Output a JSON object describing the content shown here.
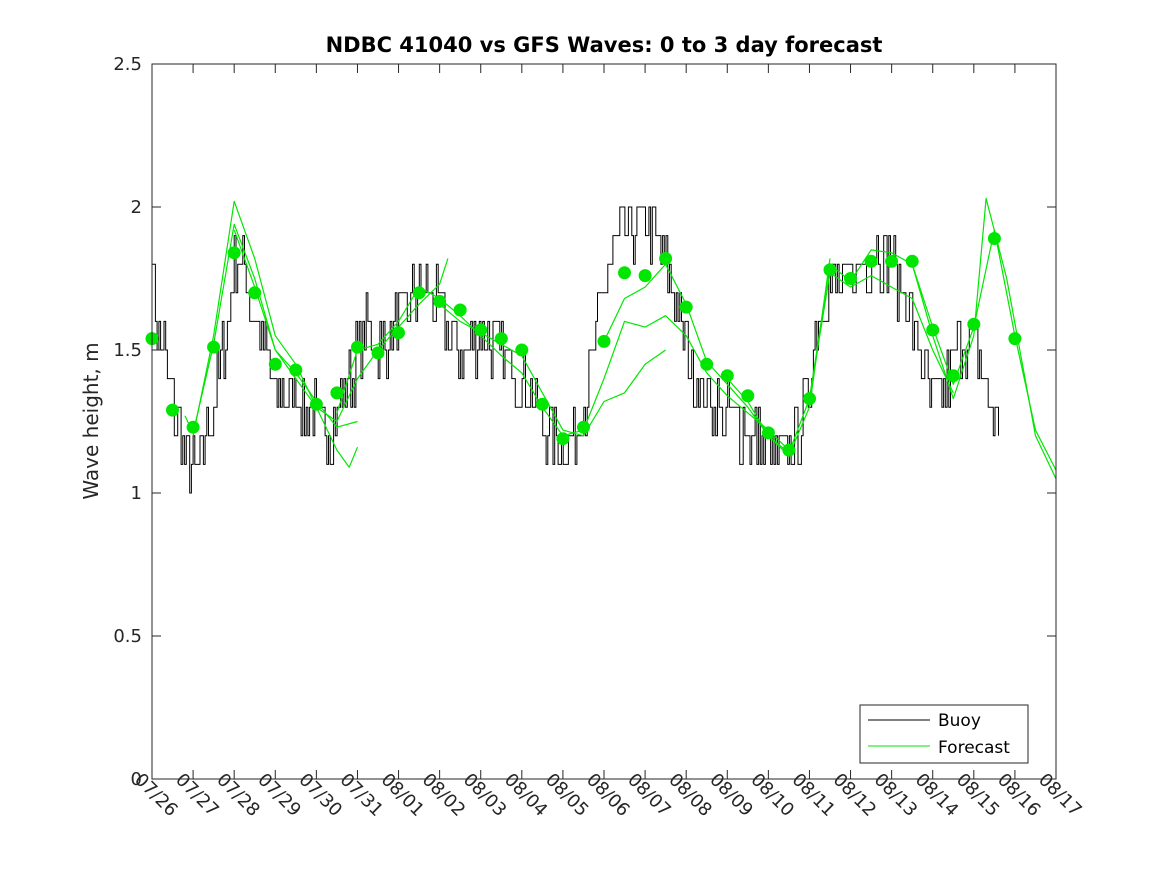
{
  "chart_data": {
    "type": "line",
    "title": "NDBC 41040 vs GFS Waves: 0 to 3 day forecast",
    "xlabel": "",
    "ylabel": "Wave height, m",
    "xlim": [
      0,
      22
    ],
    "ylim": [
      0,
      2.5
    ],
    "x_tick_labels": [
      "07/26",
      "07/27",
      "07/28",
      "07/29",
      "07/30",
      "07/31",
      "08/01",
      "08/02",
      "08/03",
      "08/04",
      "08/05",
      "08/06",
      "08/07",
      "08/08",
      "08/09",
      "08/10",
      "08/11",
      "08/12",
      "08/13",
      "08/14",
      "08/15",
      "08/16",
      "08/17"
    ],
    "y_ticks": [
      0,
      0.5,
      1,
      1.5,
      2,
      2.5
    ],
    "y_tick_labels": [
      "0",
      "0.5",
      "1",
      "1.5",
      "2",
      "2.5"
    ],
    "legend": {
      "position": "bottom-right",
      "entries": [
        "Buoy",
        "Forecast"
      ]
    },
    "colors": {
      "buoy": "#000000",
      "forecast": "#00e600",
      "axis": "#262626"
    },
    "series": [
      {
        "name": "Buoy",
        "x_start": 0,
        "x_step": 0.0417,
        "seed": 7,
        "anchors": [
          [
            0.0,
            1.88
          ],
          [
            0.1,
            1.55
          ],
          [
            0.3,
            1.5
          ],
          [
            0.5,
            1.3
          ],
          [
            0.8,
            1.15
          ],
          [
            1.0,
            1.08
          ],
          [
            1.2,
            1.15
          ],
          [
            1.5,
            1.3
          ],
          [
            1.8,
            1.55
          ],
          [
            2.0,
            1.8
          ],
          [
            2.2,
            1.8
          ],
          [
            2.5,
            1.6
          ],
          [
            2.8,
            1.45
          ],
          [
            3.0,
            1.35
          ],
          [
            3.5,
            1.35
          ],
          [
            4.0,
            1.25
          ],
          [
            4.3,
            1.22
          ],
          [
            4.8,
            1.4
          ],
          [
            5.2,
            1.55
          ],
          [
            5.6,
            1.5
          ],
          [
            6.0,
            1.6
          ],
          [
            6.5,
            1.7
          ],
          [
            6.8,
            1.7
          ],
          [
            7.2,
            1.55
          ],
          [
            7.6,
            1.5
          ],
          [
            8.0,
            1.55
          ],
          [
            8.4,
            1.5
          ],
          [
            8.8,
            1.45
          ],
          [
            9.2,
            1.35
          ],
          [
            9.6,
            1.22
          ],
          [
            10.0,
            1.15
          ],
          [
            10.3,
            1.2
          ],
          [
            10.5,
            1.3
          ],
          [
            10.8,
            1.5
          ],
          [
            11.0,
            1.75
          ],
          [
            11.4,
            1.9
          ],
          [
            11.8,
            1.95
          ],
          [
            12.2,
            1.9
          ],
          [
            12.6,
            1.75
          ],
          [
            13.0,
            1.5
          ],
          [
            13.4,
            1.35
          ],
          [
            13.8,
            1.3
          ],
          [
            14.2,
            1.25
          ],
          [
            14.6,
            1.2
          ],
          [
            15.0,
            1.15
          ],
          [
            15.3,
            1.12
          ],
          [
            15.6,
            1.15
          ],
          [
            15.9,
            1.3
          ],
          [
            16.2,
            1.6
          ],
          [
            16.5,
            1.75
          ],
          [
            16.8,
            1.7
          ],
          [
            17.2,
            1.8
          ],
          [
            17.6,
            1.85
          ],
          [
            18.0,
            1.8
          ],
          [
            18.4,
            1.65
          ],
          [
            18.8,
            1.4
          ],
          [
            19.0,
            1.3
          ],
          [
            19.3,
            1.35
          ],
          [
            19.6,
            1.5
          ],
          [
            20.0,
            1.55
          ],
          [
            20.2,
            1.45
          ],
          [
            20.4,
            1.3
          ],
          [
            20.6,
            1.2
          ]
        ]
      },
      {
        "name": "Forecast",
        "daily_markers": [
          [
            0.0,
            1.54
          ],
          [
            0.5,
            1.29
          ],
          [
            1.0,
            1.23
          ],
          [
            1.5,
            1.51
          ],
          [
            2.0,
            1.84
          ],
          [
            2.5,
            1.7
          ],
          [
            3.0,
            1.45
          ],
          [
            3.5,
            1.43
          ],
          [
            4.0,
            1.31
          ],
          [
            4.5,
            1.35
          ],
          [
            5.0,
            1.51
          ],
          [
            5.5,
            1.49
          ],
          [
            6.0,
            1.56
          ],
          [
            6.5,
            1.7
          ],
          [
            7.0,
            1.67
          ],
          [
            7.5,
            1.64
          ],
          [
            8.0,
            1.57
          ],
          [
            8.5,
            1.54
          ],
          [
            9.0,
            1.5
          ],
          [
            9.5,
            1.31
          ],
          [
            10.0,
            1.19
          ],
          [
            10.5,
            1.23
          ],
          [
            11.0,
            1.53
          ],
          [
            11.5,
            1.77
          ],
          [
            12.0,
            1.76
          ],
          [
            12.5,
            1.82
          ],
          [
            13.0,
            1.65
          ],
          [
            13.5,
            1.45
          ],
          [
            14.0,
            1.41
          ],
          [
            14.5,
            1.34
          ],
          [
            15.0,
            1.21
          ],
          [
            15.5,
            1.15
          ],
          [
            16.0,
            1.33
          ],
          [
            16.5,
            1.78
          ],
          [
            17.0,
            1.75
          ],
          [
            17.5,
            1.81
          ],
          [
            18.0,
            1.81
          ],
          [
            18.5,
            1.81
          ],
          [
            19.0,
            1.57
          ],
          [
            19.5,
            1.41
          ],
          [
            20.0,
            1.59
          ],
          [
            20.5,
            1.89
          ],
          [
            21.0,
            1.54
          ]
        ],
        "runs": [
          [
            [
              0.8,
              1.27
            ],
            [
              1.0,
              1.21
            ],
            [
              1.5,
              1.52
            ],
            [
              2.0,
              1.94
            ],
            [
              2.5,
              1.75
            ],
            [
              3.0,
              1.5
            ],
            [
              3.5,
              1.42
            ],
            [
              4.0,
              1.32
            ],
            [
              4.5,
              1.23
            ],
            [
              5.0,
              1.25
            ]
          ],
          [
            [
              1.0,
              1.2
            ],
            [
              1.5,
              1.55
            ],
            [
              2.0,
              2.02
            ],
            [
              2.5,
              1.82
            ],
            [
              3.0,
              1.55
            ],
            [
              3.5,
              1.45
            ],
            [
              4.0,
              1.3
            ],
            [
              4.5,
              1.15
            ],
            [
              4.8,
              1.09
            ],
            [
              5.0,
              1.16
            ]
          ],
          [
            [
              2.0,
              1.92
            ],
            [
              2.5,
              1.72
            ],
            [
              3.0,
              1.5
            ],
            [
              3.5,
              1.4
            ],
            [
              4.0,
              1.3
            ],
            [
              4.5,
              1.25
            ],
            [
              5.0,
              1.4
            ],
            [
              5.5,
              1.5
            ],
            [
              6.0,
              1.58
            ],
            [
              6.5,
              1.66
            ],
            [
              7.0,
              1.73
            ],
            [
              7.2,
              1.82
            ]
          ],
          [
            [
              4.5,
              1.28
            ],
            [
              5.0,
              1.5
            ],
            [
              5.5,
              1.52
            ],
            [
              6.0,
              1.6
            ],
            [
              6.5,
              1.72
            ],
            [
              7.0,
              1.68
            ],
            [
              7.5,
              1.62
            ],
            [
              8.0,
              1.55
            ],
            [
              8.5,
              1.48
            ],
            [
              9.0,
              1.42
            ],
            [
              9.5,
              1.3
            ],
            [
              10.0,
              1.2
            ]
          ],
          [
            [
              7.0,
              1.66
            ],
            [
              7.5,
              1.6
            ],
            [
              8.0,
              1.56
            ],
            [
              8.5,
              1.52
            ],
            [
              9.0,
              1.48
            ],
            [
              9.5,
              1.35
            ],
            [
              10.0,
              1.22
            ],
            [
              10.5,
              1.2
            ],
            [
              11.0,
              1.32
            ],
            [
              11.5,
              1.35
            ],
            [
              12.0,
              1.45
            ],
            [
              12.5,
              1.5
            ]
          ],
          [
            [
              10.0,
              1.2
            ],
            [
              10.5,
              1.22
            ],
            [
              11.0,
              1.4
            ],
            [
              11.5,
              1.6
            ],
            [
              12.0,
              1.58
            ],
            [
              12.5,
              1.62
            ],
            [
              13.0,
              1.55
            ],
            [
              13.5,
              1.42
            ],
            [
              14.0,
              1.34
            ],
            [
              14.5,
              1.28
            ],
            [
              15.0,
              1.22
            ],
            [
              15.5,
              1.15
            ]
          ],
          [
            [
              11.0,
              1.53
            ],
            [
              11.5,
              1.68
            ],
            [
              12.0,
              1.72
            ],
            [
              12.5,
              1.8
            ],
            [
              13.0,
              1.66
            ],
            [
              13.5,
              1.46
            ],
            [
              14.0,
              1.38
            ],
            [
              14.5,
              1.3
            ],
            [
              15.0,
              1.2
            ],
            [
              15.5,
              1.13
            ],
            [
              16.0,
              1.3
            ],
            [
              16.5,
              1.82
            ]
          ],
          [
            [
              14.0,
              1.4
            ],
            [
              14.5,
              1.32
            ],
            [
              15.0,
              1.2
            ],
            [
              15.5,
              1.14
            ],
            [
              16.0,
              1.33
            ],
            [
              16.5,
              1.77
            ],
            [
              17.0,
              1.72
            ],
            [
              17.5,
              1.76
            ],
            [
              18.0,
              1.72
            ],
            [
              18.5,
              1.68
            ],
            [
              19.0,
              1.5
            ],
            [
              19.5,
              1.35
            ]
          ],
          [
            [
              16.0,
              1.33
            ],
            [
              16.5,
              1.8
            ],
            [
              17.0,
              1.74
            ],
            [
              17.5,
              1.85
            ],
            [
              18.0,
              1.84
            ],
            [
              18.5,
              1.8
            ],
            [
              19.0,
              1.55
            ],
            [
              19.5,
              1.33
            ],
            [
              20.0,
              1.55
            ],
            [
              20.3,
              2.03
            ],
            [
              20.8,
              1.75
            ],
            [
              21.5,
              1.2
            ],
            [
              22.0,
              1.05
            ]
          ],
          [
            [
              18.5,
              1.8
            ],
            [
              19.0,
              1.58
            ],
            [
              19.5,
              1.38
            ],
            [
              20.0,
              1.58
            ],
            [
              20.5,
              1.92
            ],
            [
              21.0,
              1.55
            ],
            [
              21.5,
              1.22
            ],
            [
              22.0,
              1.08
            ]
          ]
        ]
      }
    ]
  }
}
